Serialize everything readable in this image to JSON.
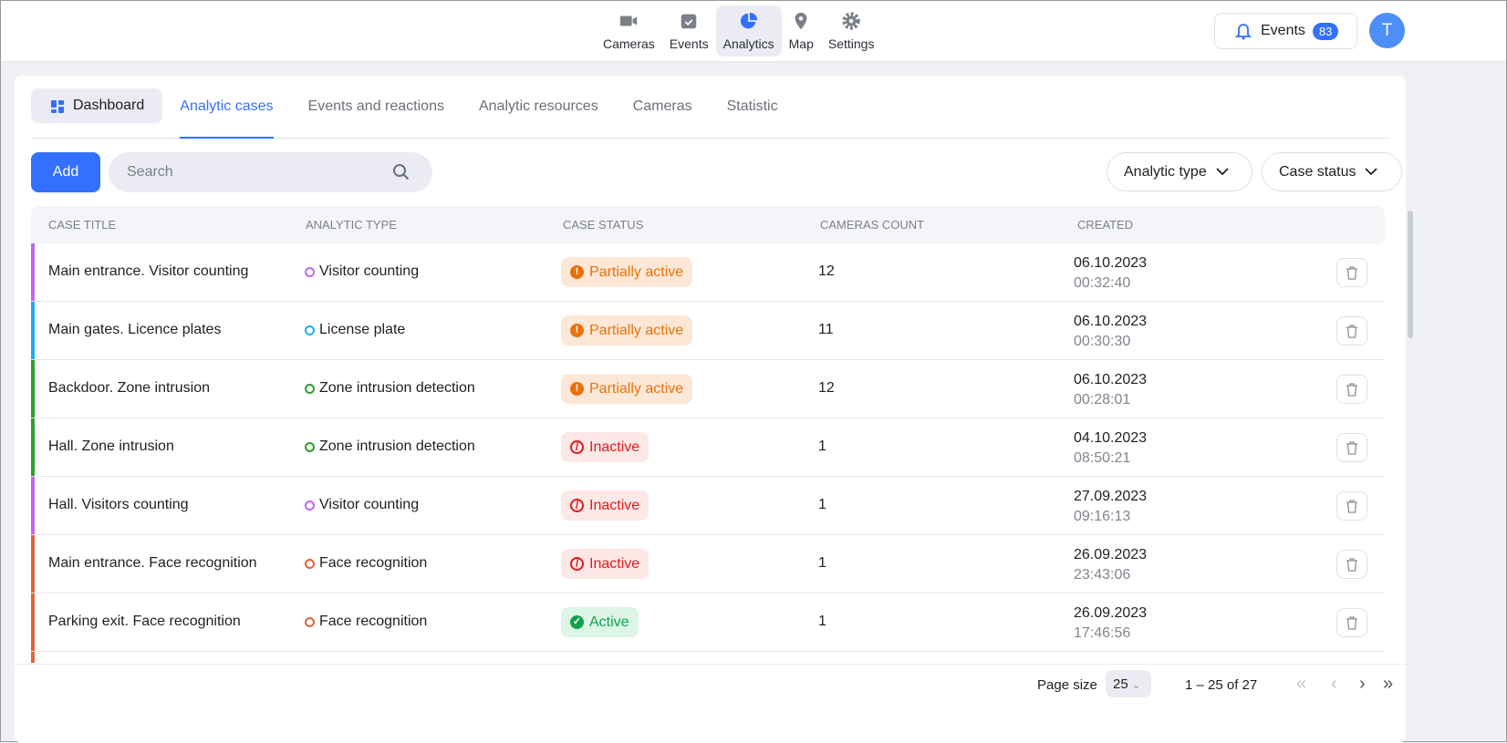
{
  "nav": {
    "items": [
      {
        "label": "Cameras",
        "icon": "camera-icon"
      },
      {
        "label": "Events",
        "icon": "calendar-check-icon"
      },
      {
        "label": "Analytics",
        "icon": "pie-chart-icon",
        "active": true
      },
      {
        "label": "Map",
        "icon": "map-pin-icon"
      },
      {
        "label": "Settings",
        "icon": "gear-icon"
      }
    ]
  },
  "header": {
    "events_label": "Events",
    "events_count": "83",
    "avatar": "T"
  },
  "tabs": [
    {
      "label": "Dashboard"
    },
    {
      "label": "Analytic cases",
      "active": true
    },
    {
      "label": "Events and reactions"
    },
    {
      "label": "Analytic resources"
    },
    {
      "label": "Cameras"
    },
    {
      "label": "Statistic"
    }
  ],
  "toolbar": {
    "add_label": "Add",
    "search_placeholder": "Search",
    "search_value": "",
    "filter_analytic_type": "Analytic type",
    "filter_case_status": "Case status"
  },
  "table": {
    "columns": [
      "Case title",
      "Analytic type",
      "Case status",
      "Cameras count",
      "Created"
    ],
    "rows": [
      {
        "title": "Main entrance. Visitor counting",
        "type": "Visitor counting",
        "status": "Partially active",
        "count": "12",
        "date": "06.10.2023",
        "time": "00:32:40",
        "color": "#c266f2",
        "warn": false
      },
      {
        "title": "Main gates. Licence plates",
        "type": "License plate",
        "status": "Partially active",
        "count": "11",
        "date": "06.10.2023",
        "time": "00:30:30",
        "color": "#19aef0",
        "warn": false
      },
      {
        "title": "Backdoor. Zone intrusion",
        "type": "Zone intrusion detection",
        "status": "Partially active",
        "count": "12",
        "date": "06.10.2023",
        "time": "00:28:01",
        "color": "#2e9e2e",
        "warn": true
      },
      {
        "title": "Hall. Zone intrusion",
        "type": "Zone intrusion detection",
        "status": "Inactive",
        "count": "1",
        "date": "04.10.2023",
        "time": "08:50:21",
        "color": "#2e9e2e",
        "warn": false
      },
      {
        "title": "Hall. Visitors counting",
        "type": "Visitor counting",
        "status": "Inactive",
        "count": "1",
        "date": "27.09.2023",
        "time": "09:16:13",
        "color": "#c266f2",
        "warn": true
      },
      {
        "title": "Main entrance. Face recognition",
        "type": "Face recognition",
        "status": "Inactive",
        "count": "1",
        "date": "26.09.2023",
        "time": "23:43:06",
        "color": "#e0643a",
        "warn": false
      },
      {
        "title": "Parking exit. Face recognition",
        "type": "Face recognition",
        "status": "Active",
        "count": "1",
        "date": "26.09.2023",
        "time": "17:46:56",
        "color": "#e0643a",
        "warn": false
      },
      {
        "title": "",
        "type": "",
        "status": "",
        "count": "",
        "date": "",
        "time": "",
        "color": "#e0643a",
        "warn": false
      }
    ]
  },
  "status_styles": {
    "Partially active": {
      "bg": "#fde8d7",
      "fg": "#e8710a"
    },
    "Inactive": {
      "bg": "#fde8e8",
      "fg": "#e01b1b"
    },
    "Active": {
      "bg": "#dcf5e6",
      "fg": "#12a150"
    }
  },
  "pagination": {
    "page_size_label": "Page size",
    "page_size": "25",
    "range": "1 – 25 of 27"
  }
}
